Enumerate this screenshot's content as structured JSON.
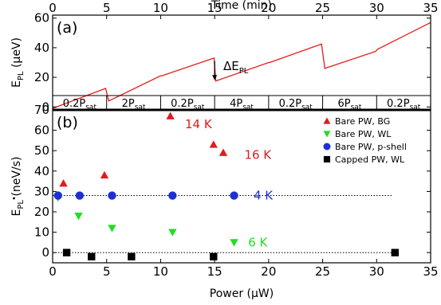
{
  "chart_data": [
    {
      "panel_label": "(a)",
      "type": "line",
      "top_xlabel": "Time (min)",
      "ylabel_base": "E",
      "ylabel_sub": "PL",
      "ylabel_unit": " (μeV)",
      "xlim": [
        0,
        35
      ],
      "ylim": [
        -2,
        62
      ],
      "xticks": [
        0,
        5,
        10,
        15,
        20,
        25,
        30,
        35
      ],
      "yticks": [
        0,
        20,
        40,
        60
      ],
      "grid": false,
      "series": [
        {
          "color": "#e41a1c",
          "x": [
            0.0,
            4.9,
            5.2,
            10.0,
            10.1,
            14.95,
            15.1,
            20.0,
            20.1,
            24.9,
            25.2,
            29.9,
            30.1,
            35.0
          ],
          "y": [
            -1.0,
            12.5,
            4.0,
            21.0,
            21.0,
            33.0,
            17.5,
            30.0,
            30.0,
            42.5,
            26.0,
            37.5,
            39.0,
            57.0
          ]
        }
      ],
      "annotation": {
        "base": "ΔE",
        "sub": "PL",
        "x": 15.8,
        "y": 25
      },
      "segments": [
        {
          "num": "0.2P",
          "sub": "sat",
          "x": 2.5
        },
        {
          "num": "2P",
          "sub": "sat",
          "x": 7.5
        },
        {
          "num": "0.2P",
          "sub": "sat",
          "x": 12.5
        },
        {
          "num": "4P",
          "sub": "sat",
          "x": 17.5
        },
        {
          "num": "0.2P",
          "sub": "sat",
          "x": 22.5
        },
        {
          "num": "6P",
          "sub": "sat",
          "x": 27.5
        },
        {
          "num": "0.2P",
          "sub": "sat",
          "x": 32.5
        }
      ],
      "segment_dividers": [
        5,
        10,
        15,
        20,
        25,
        30
      ]
    },
    {
      "panel_label": "(b)",
      "type": "scatter",
      "xlabel": "Power (μW)",
      "ylabel_base": "E",
      "ylabel_sub": "PL",
      "ylabel_unit": " (neV/s)",
      "xlim": [
        0,
        35
      ],
      "ylim": [
        -5,
        70
      ],
      "xticks": [
        0,
        5,
        10,
        15,
        20,
        25,
        30,
        35
      ],
      "yticks": [
        0,
        10,
        20,
        30,
        40,
        50,
        60,
        70
      ],
      "grid": false,
      "legend_position": "top-right",
      "series": [
        {
          "name": "Bare PW, BG",
          "marker": "triangle-up",
          "color": "#e41a1c",
          "x": [
            1.0,
            4.8,
            10.9,
            14.9,
            15.8
          ],
          "y": [
            34,
            38,
            67,
            53,
            49
          ]
        },
        {
          "name": "Bare PW, WL",
          "marker": "triangle-down",
          "color": "#22dd22",
          "x": [
            0.5,
            2.4,
            5.5,
            11.1,
            16.8
          ],
          "y": [
            27,
            18,
            12,
            10,
            5
          ]
        },
        {
          "name": "Bare PW, p-shell",
          "marker": "circle",
          "color": "#1f2fd6",
          "x": [
            0.5,
            2.5,
            5.5,
            11.1,
            16.8
          ],
          "y": [
            28,
            28,
            28,
            28,
            28
          ]
        },
        {
          "name": "Capped PW, WL",
          "marker": "square",
          "color": "#000000",
          "x": [
            1.3,
            3.6,
            7.3,
            14.9,
            31.7
          ],
          "y": [
            0,
            -2,
            -2,
            -2,
            0
          ]
        }
      ],
      "reference_lines": [
        {
          "y": 28,
          "x": [
            0,
            31.5
          ]
        },
        {
          "y": 0,
          "x": [
            0,
            31.5
          ]
        }
      ],
      "annotations": [
        {
          "text": "14 K",
          "x": 13.5,
          "y": 63,
          "color": "#e41a1c"
        },
        {
          "text": "16 K",
          "x": 19.0,
          "y": 48,
          "color": "#e41a1c"
        },
        {
          "text": "4 K",
          "x": 19.5,
          "y": 28,
          "color": "#1f2fd6"
        },
        {
          "text": "6 K",
          "x": 19.0,
          "y": 5,
          "color": "#22dd22"
        }
      ]
    }
  ]
}
